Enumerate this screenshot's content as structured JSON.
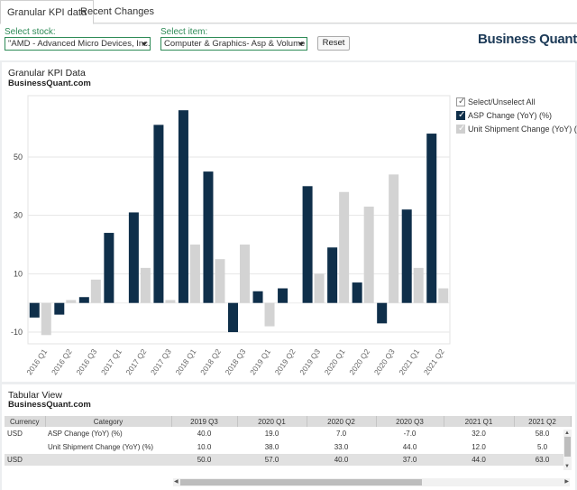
{
  "tabs": [
    "Granular KPI data",
    "Recent Changes"
  ],
  "controls": {
    "stock_label": "Select stock:",
    "stock_value": "\"AMD - Advanced Micro Devices, Inc.\"",
    "item_label": "Select item:",
    "item_value": "Computer & Graphics- Asp & Volume (...",
    "reset_label": "Reset"
  },
  "brand": {
    "name": "Business Quant"
  },
  "chart_panel": {
    "title": "Granular KPI Data",
    "subtitle": "BusinessQuant.com"
  },
  "legend": {
    "select_all": "Select/Unselect All",
    "items": [
      "ASP Change (YoY) (%)",
      "Unit Shipment Change (YoY) (%)"
    ]
  },
  "colors": {
    "asp": "#0f2f4a",
    "unit": "#d3d3d3",
    "accent_green": "#2e8b57"
  },
  "chart_data": {
    "type": "bar",
    "categories": [
      "2016 Q1",
      "2016 Q2",
      "2016 Q3",
      "2017 Q1",
      "2017 Q2",
      "2017 Q3",
      "2018 Q1",
      "2018 Q2",
      "2018 Q3",
      "2019 Q1",
      "2019 Q2",
      "2019 Q3",
      "2020 Q1",
      "2020 Q2",
      "2020 Q3",
      "2021 Q1",
      "2021 Q2"
    ],
    "series": [
      {
        "name": "ASP Change (YoY) (%)",
        "values": [
          -5,
          -4,
          2,
          24,
          31,
          61,
          66,
          45,
          -10,
          4,
          5,
          40,
          19,
          7,
          -7,
          32,
          58
        ]
      },
      {
        "name": "Unit Shipment Change (YoY) (%)",
        "values": [
          -11,
          1,
          8,
          0,
          12,
          1,
          20,
          15,
          20,
          -8,
          0,
          10,
          38,
          33,
          44,
          12,
          5
        ]
      }
    ],
    "yticks": [
      -10,
      10,
      30,
      50
    ],
    "ylim": [
      -14,
      71
    ],
    "grid": true,
    "legend_position": "right"
  },
  "table_panel": {
    "title": "Tabular View",
    "subtitle": "BusinessQuant.com"
  },
  "table": {
    "headers": [
      "Currency",
      "Category",
      "2019 Q3",
      "2020 Q1",
      "2020 Q2",
      "2020 Q3",
      "2021 Q1",
      "2021 Q2"
    ],
    "rows": [
      [
        "USD",
        "ASP Change (YoY) (%)",
        "40.0",
        "19.0",
        "7.0",
        "-7.0",
        "32.0",
        "58.0"
      ],
      [
        "",
        "Unit Shipment Change (YoY) (%)",
        "10.0",
        "38.0",
        "33.0",
        "44.0",
        "12.0",
        "5.0"
      ]
    ],
    "total": [
      "USD",
      "",
      "50.0",
      "57.0",
      "40.0",
      "37.0",
      "44.0",
      "63.0"
    ]
  }
}
